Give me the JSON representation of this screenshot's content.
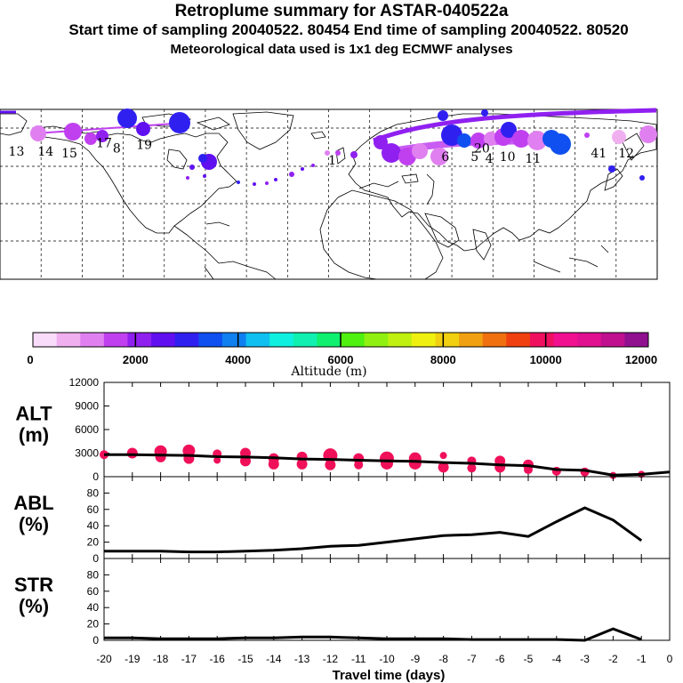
{
  "header": {
    "title": "Retroplume summary for ASTAR-040522a",
    "line2": "Start time of sampling 20040522. 80454     End time of sampling 20040522. 80520",
    "line3": "Meteorological data used is 1x1 deg ECMWF analyses"
  },
  "colors": {
    "scale": [
      "#f9dcf9",
      "#f0b0f0",
      "#e080f0",
      "#c040f0",
      "#9020f0",
      "#6010f0",
      "#3020f0",
      "#1050f0",
      "#1080f0",
      "#10c0f0",
      "#10f0e0",
      "#10f0b0",
      "#10f070",
      "#50f010",
      "#90f010",
      "#c0f010",
      "#f0f010",
      "#f0d010",
      "#f0a010",
      "#f07010",
      "#f04010",
      "#f01060",
      "#f01090",
      "#e01090",
      "#c01090",
      "#901090"
    ],
    "point": "#f0105a",
    "line": "#000000"
  },
  "map": {
    "labels": [
      {
        "text": "13",
        "lon": -171,
        "lat": 63,
        "color": "#e080f0"
      },
      {
        "text": "14",
        "lon": -155,
        "lat": 63,
        "color": "#e080f0"
      },
      {
        "text": "15",
        "lon": -142,
        "lat": 62,
        "color": "#c040f0"
      },
      {
        "text": "17",
        "lon": -123,
        "lat": 68,
        "color": "#3020f0"
      },
      {
        "text": "8",
        "lon": -116,
        "lat": 65,
        "color": "#3020f0"
      },
      {
        "text": "19",
        "lon": -101,
        "lat": 67,
        "color": "#3020f0"
      },
      {
        "text": "6",
        "lon": 64,
        "lat": 60,
        "color": "#c040f0"
      },
      {
        "text": "5",
        "lon": 80,
        "lat": 60,
        "color": "#9020f0"
      },
      {
        "text": "4",
        "lon": 88,
        "lat": 59,
        "color": "#e080f0"
      },
      {
        "text": "10",
        "lon": 98,
        "lat": 60,
        "color": "#c040f0"
      },
      {
        "text": "20",
        "lon": 84,
        "lat": 65,
        "color": "#3020f0"
      },
      {
        "text": "1",
        "lon": 2,
        "lat": 58,
        "color": "#9020f0"
      },
      {
        "text": "11",
        "lon": 112,
        "lat": 59,
        "color": "#1050f0"
      },
      {
        "text": "41",
        "lon": 148,
        "lat": 62,
        "color": "#f0b0f0"
      },
      {
        "text": "12",
        "lon": 163,
        "lat": 62,
        "color": "#e080f0"
      }
    ]
  },
  "colorbar": {
    "ticks": [
      "0",
      "2000",
      "4000",
      "6000",
      "8000",
      "10000",
      "12000"
    ],
    "label": "Altitude (m)"
  },
  "chart_data": [
    {
      "type": "line",
      "panel": "ALT",
      "ylabel_line1": "ALT",
      "ylabel_line2": "(m)",
      "ylim": [
        0,
        12000
      ],
      "yticks": [
        "0",
        "3000",
        "6000",
        "9000",
        "12000"
      ],
      "yticks_values": [
        0,
        3000,
        6000,
        9000,
        12000
      ],
      "x": [
        -20,
        -19,
        -18,
        -17,
        -16,
        -15,
        -14,
        -13,
        -12,
        -11,
        -10,
        -9,
        -8,
        -7,
        -6,
        -5,
        -4,
        -3,
        -2,
        -1,
        0
      ],
      "values": [
        2800,
        2800,
        2750,
        2700,
        2550,
        2500,
        2400,
        2250,
        2200,
        2100,
        2000,
        1950,
        1800,
        1700,
        1500,
        1400,
        900,
        800,
        200,
        300,
        600
      ],
      "scatter": [
        {
          "x": -20,
          "y": 2800,
          "s": 5
        },
        {
          "x": -19,
          "y": 3000,
          "s": 6
        },
        {
          "x": -18,
          "y": 3200,
          "s": 7
        },
        {
          "x": -18,
          "y": 2500,
          "s": 6
        },
        {
          "x": -17,
          "y": 3300,
          "s": 7
        },
        {
          "x": -17,
          "y": 2300,
          "s": 6
        },
        {
          "x": -16,
          "y": 2900,
          "s": 5
        },
        {
          "x": -16,
          "y": 2100,
          "s": 4
        },
        {
          "x": -15,
          "y": 3000,
          "s": 6
        },
        {
          "x": -15,
          "y": 2000,
          "s": 6
        },
        {
          "x": -14,
          "y": 2300,
          "s": 6
        },
        {
          "x": -14,
          "y": 1600,
          "s": 6
        },
        {
          "x": -13,
          "y": 2500,
          "s": 6
        },
        {
          "x": -13,
          "y": 1600,
          "s": 6
        },
        {
          "x": -12,
          "y": 2700,
          "s": 8
        },
        {
          "x": -12,
          "y": 1500,
          "s": 6
        },
        {
          "x": -11,
          "y": 2300,
          "s": 6
        },
        {
          "x": -11,
          "y": 1500,
          "s": 5
        },
        {
          "x": -10,
          "y": 2300,
          "s": 8
        },
        {
          "x": -10,
          "y": 1700,
          "s": 7
        },
        {
          "x": -9,
          "y": 2300,
          "s": 7
        },
        {
          "x": -9,
          "y": 1700,
          "s": 7
        },
        {
          "x": -8,
          "y": 2700,
          "s": 4
        },
        {
          "x": -8,
          "y": 1200,
          "s": 6
        },
        {
          "x": -7,
          "y": 2000,
          "s": 5
        },
        {
          "x": -7,
          "y": 1100,
          "s": 5
        },
        {
          "x": -6,
          "y": 2000,
          "s": 6
        },
        {
          "x": -6,
          "y": 1200,
          "s": 6
        },
        {
          "x": -5,
          "y": 1500,
          "s": 6
        },
        {
          "x": -5,
          "y": 900,
          "s": 5
        },
        {
          "x": -4,
          "y": 700,
          "s": 5
        },
        {
          "x": -3,
          "y": 600,
          "s": 5
        },
        {
          "x": -2,
          "y": 150,
          "s": 4
        },
        {
          "x": -1,
          "y": 300,
          "s": 4
        }
      ]
    },
    {
      "type": "line",
      "panel": "ABL",
      "ylabel_line1": "ABL",
      "ylabel_line2": "(%)",
      "ylim": [
        0,
        100
      ],
      "yticks": [
        "0",
        "20",
        "40",
        "60",
        "80"
      ],
      "yticks_values": [
        0,
        20,
        40,
        60,
        80
      ],
      "x": [
        -20,
        -19,
        -18,
        -17,
        -16,
        -15,
        -14,
        -13,
        -12,
        -11,
        -10,
        -9,
        -8,
        -7,
        -6,
        -5,
        -4,
        -3,
        -2,
        -1
      ],
      "values": [
        9,
        9,
        9,
        8,
        8,
        9,
        10,
        12,
        15,
        16,
        20,
        24,
        28,
        29,
        32,
        27,
        45,
        62,
        47,
        22
      ]
    },
    {
      "type": "line",
      "panel": "STR",
      "ylabel_line1": "STR",
      "ylabel_line2": "(%)",
      "ylim": [
        0,
        100
      ],
      "yticks": [
        "0",
        "20",
        "40",
        "60",
        "80"
      ],
      "yticks_values": [
        0,
        20,
        40,
        60,
        80
      ],
      "x": [
        -20,
        -19,
        -18,
        -17,
        -16,
        -15,
        -14,
        -13,
        -12,
        -11,
        -10,
        -9,
        -8,
        -7,
        -6,
        -5,
        -4,
        -3,
        -2,
        -1
      ],
      "values": [
        3,
        3,
        2,
        2,
        2,
        3,
        3,
        4,
        4,
        3,
        2,
        2,
        2,
        1,
        1,
        1,
        1,
        0,
        14,
        1
      ]
    }
  ],
  "xaxis": {
    "ticks": [
      "-20",
      "-19",
      "-18",
      "-17",
      "-16",
      "-15",
      "-14",
      "-13",
      "-12",
      "-11",
      "-10",
      "-9",
      "-8",
      "-7",
      "-6",
      "-5",
      "-4",
      "-3",
      "-2",
      "-1",
      "0"
    ],
    "tick_values": [
      -20,
      -19,
      -18,
      -17,
      -16,
      -15,
      -14,
      -13,
      -12,
      -11,
      -10,
      -9,
      -8,
      -7,
      -6,
      -5,
      -4,
      -3,
      -2,
      -1,
      0
    ],
    "label": "Travel time (days)",
    "xlim": [
      -20,
      0
    ]
  }
}
